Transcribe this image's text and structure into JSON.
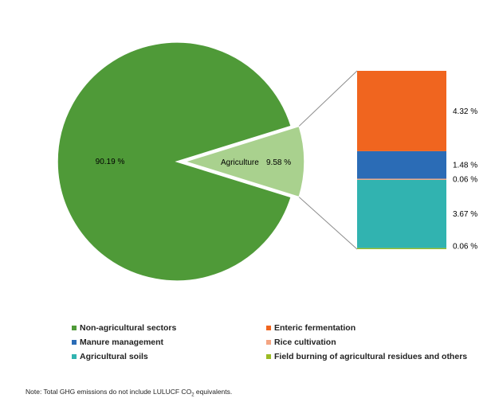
{
  "chart_data": [
    {
      "type": "pie",
      "slices": [
        {
          "label": "",
          "value": 90.19,
          "value_label": "90.19 %",
          "color": "#4f9a38"
        },
        {
          "label": "Agriculture",
          "value": 9.58,
          "value_label": "9.58 %",
          "color": "#a9d18e"
        }
      ]
    },
    {
      "type": "bar",
      "stacked": true,
      "segments": [
        {
          "name": "Field burning of agricultural residues and others",
          "value": 0.06,
          "value_label": "0.06 %",
          "color": "#9bbb24"
        },
        {
          "name": "Agricultural soils",
          "value": 3.67,
          "value_label": "3.67 %",
          "color": "#31b3b0"
        },
        {
          "name": "Rice cultivation",
          "value": 0.06,
          "value_label": "0.06 %",
          "color": "#f4a582"
        },
        {
          "name": "Manure management",
          "value": 1.48,
          "value_label": "1.48 %",
          "color": "#2b6cb6"
        },
        {
          "name": "Enteric fermentation",
          "value": 4.32,
          "value_label": "4.32 %",
          "color": "#f0651f"
        }
      ]
    }
  ],
  "legend": [
    {
      "label": "Non-agricultural sectors",
      "color": "#4f9a38"
    },
    {
      "label": "Enteric fermentation",
      "color": "#f0651f"
    },
    {
      "label": "Manure management",
      "color": "#2b6cb6"
    },
    {
      "label": "Rice cultivation",
      "color": "#f4a582"
    },
    {
      "label": "Agricultural soils",
      "color": "#31b3b0"
    },
    {
      "label": "Field burning of agricultural residues and others",
      "color": "#9bbb24"
    }
  ],
  "note": {
    "prefix": "Note: Total GHG emissions do not include LULUCF CO",
    "subscript": "2",
    "suffix": " equivalents."
  }
}
